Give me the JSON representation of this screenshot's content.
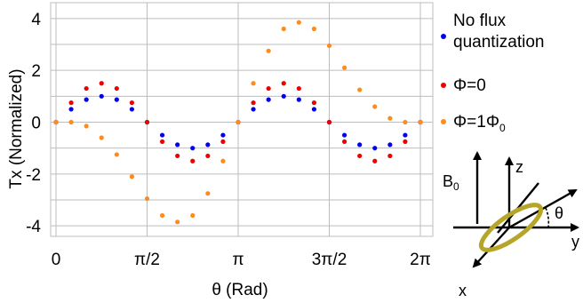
{
  "chart_data": {
    "type": "scatter",
    "xlabel": "θ (Rad)",
    "ylabel": "Tx (Normalized)",
    "xlim": [
      0,
      6.2832
    ],
    "ylim": [
      -4.2,
      4.2
    ],
    "grid": true,
    "legend_position": "right",
    "xticks": [
      {
        "value": 0,
        "label": "0"
      },
      {
        "value": 1.5708,
        "label": "π/2"
      },
      {
        "value": 3.1416,
        "label": "π"
      },
      {
        "value": 4.7124,
        "label": "3π/2"
      },
      {
        "value": 6.2832,
        "label": "2π"
      }
    ],
    "yticks": [
      {
        "value": -4,
        "label": "-4"
      },
      {
        "value": -2,
        "label": "-2"
      },
      {
        "value": 0,
        "label": "0"
      },
      {
        "value": 2,
        "label": "2"
      },
      {
        "value": 4,
        "label": "4"
      }
    ],
    "x": [
      0,
      0.2618,
      0.5236,
      0.7854,
      1.0472,
      1.309,
      1.5708,
      1.8326,
      2.0944,
      2.3562,
      2.618,
      2.8798,
      3.1416,
      3.4034,
      3.6652,
      3.927,
      4.1888,
      4.4506,
      4.7124,
      4.9742,
      5.236,
      5.4978,
      5.7596,
      6.0214,
      6.2832
    ],
    "series": [
      {
        "name_lines": [
          "No flux",
          "quantization"
        ],
        "color": "#0000ee",
        "values": [
          0,
          0.5,
          0.87,
          1.0,
          0.87,
          0.5,
          0,
          -0.5,
          -0.87,
          -1.0,
          -0.87,
          -0.5,
          0,
          0.5,
          0.87,
          1.0,
          0.87,
          0.5,
          0,
          -0.5,
          -0.87,
          -1.0,
          -0.87,
          -0.5,
          0
        ]
      },
      {
        "name": "Φ=0",
        "color": "#ee0000",
        "values": [
          0,
          0.75,
          1.3,
          1.5,
          1.3,
          0.75,
          0,
          -0.75,
          -1.3,
          -1.5,
          -1.3,
          -0.75,
          0,
          0.75,
          1.3,
          1.5,
          1.3,
          0.75,
          0,
          -0.75,
          -1.3,
          -1.5,
          -1.3,
          -0.75,
          0
        ]
      },
      {
        "name_parts": [
          "Φ=1Φ",
          "0"
        ],
        "color": "#ff8c1a",
        "values": [
          0,
          0,
          -0.15,
          -0.6,
          -1.25,
          -2.1,
          -2.95,
          -3.6,
          -3.85,
          -3.6,
          -2.75,
          -1.5,
          0,
          1.5,
          2.75,
          3.6,
          3.85,
          3.6,
          2.95,
          2.1,
          1.25,
          0.6,
          0.15,
          0,
          0
        ]
      }
    ]
  },
  "inset": {
    "field_label": "B",
    "field_sub": "0",
    "z_label": "z",
    "y_label": "y",
    "x_label": "x",
    "angle_label": "θ",
    "ring_color": "#b5a628"
  }
}
